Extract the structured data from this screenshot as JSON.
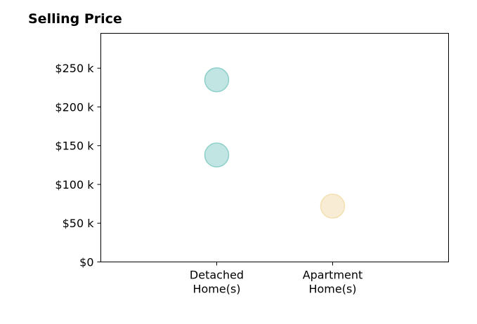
{
  "chart_data": {
    "type": "scatter",
    "title": "Selling Price",
    "xlabel": "",
    "ylabel": "",
    "categories": [
      [
        "Detached",
        "Home(s)"
      ],
      [
        "Apartment",
        "Home(s)"
      ]
    ],
    "x_range": [
      0,
      3
    ],
    "ylim": [
      0,
      295000
    ],
    "y_ticks": [
      0,
      50000,
      100000,
      150000,
      200000,
      250000
    ],
    "y_tick_labels": [
      "$0",
      "$50 k",
      "$100 k",
      "$150 k",
      "$200 k",
      "$250 k"
    ],
    "grid": false,
    "series": [
      {
        "category_index": 0,
        "color": "#8ecfca",
        "values": [
          235000,
          138000
        ]
      },
      {
        "category_index": 1,
        "color": "#f3dfb1",
        "values": [
          72000
        ]
      }
    ]
  }
}
